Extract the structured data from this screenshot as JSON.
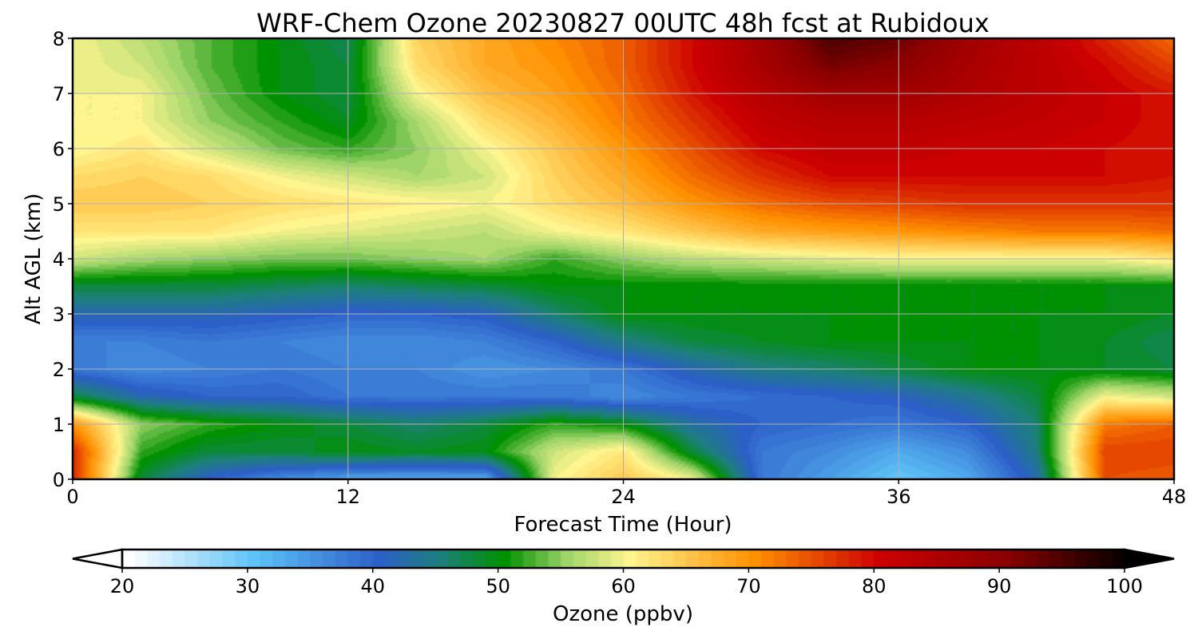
{
  "chart_data": {
    "type": "heatmap",
    "title": "WRF-Chem Ozone  20230827 00UTC 48h fcst at Rubidoux",
    "xlabel": "Forecast Time (Hour)",
    "ylabel": "Alt AGL (km)",
    "xlim": [
      0,
      48
    ],
    "ylim": [
      0,
      8
    ],
    "x_ticks": [
      "0",
      "12",
      "24",
      "36",
      "48"
    ],
    "y_ticks": [
      "0",
      "1",
      "2",
      "3",
      "4",
      "5",
      "6",
      "7",
      "8"
    ],
    "grid": true,
    "colorbar": {
      "label": "Ozone  (ppbv)",
      "range": [
        20,
        100
      ],
      "ticks": [
        "20",
        "30",
        "40",
        "50",
        "60",
        "70",
        "80",
        "90",
        "100"
      ],
      "extend": "both",
      "colors": [
        {
          "v": 20,
          "c": "#ffffff"
        },
        {
          "v": 30,
          "c": "#5ec3f8"
        },
        {
          "v": 40,
          "c": "#2c5fc8"
        },
        {
          "v": 45,
          "c": "#1d7f7a"
        },
        {
          "v": 50,
          "c": "#009100"
        },
        {
          "v": 55,
          "c": "#9fd46a"
        },
        {
          "v": 60,
          "c": "#fff58f"
        },
        {
          "v": 70,
          "c": "#ff9000"
        },
        {
          "v": 80,
          "c": "#cc0000"
        },
        {
          "v": 90,
          "c": "#8a0000"
        },
        {
          "v": 100,
          "c": "#000000"
        }
      ],
      "under_color": "#ffffff",
      "over_color": "#000000"
    },
    "x": [
      0,
      3,
      6,
      9,
      12,
      15,
      18,
      21,
      24,
      27,
      30,
      33,
      36,
      39,
      42,
      45,
      48
    ],
    "y": [
      0,
      0.5,
      1,
      1.5,
      2,
      2.5,
      3,
      3.5,
      4,
      4.5,
      5,
      5.5,
      6,
      6.5,
      7,
      7.5,
      8
    ],
    "z": [
      [
        78,
        48,
        40,
        36,
        33,
        33,
        33,
        60,
        65,
        60,
        38,
        34,
        30,
        33,
        42,
        75,
        74
      ],
      [
        78,
        52,
        48,
        48,
        50,
        49,
        50,
        58,
        62,
        48,
        38,
        36,
        33,
        36,
        45,
        76,
        76
      ],
      [
        70,
        55,
        52,
        50,
        48,
        46,
        48,
        52,
        50,
        43,
        40,
        39,
        38,
        40,
        46,
        72,
        74
      ],
      [
        48,
        42,
        40,
        40,
        38,
        38,
        38,
        38,
        36,
        38,
        39,
        40,
        41,
        44,
        48,
        60,
        58
      ],
      [
        38,
        36,
        37,
        38,
        37,
        37,
        35,
        36,
        38,
        42,
        45,
        46,
        48,
        50,
        50,
        49,
        48
      ],
      [
        37,
        37,
        38,
        37,
        36,
        36,
        37,
        40,
        45,
        48,
        49,
        50,
        50,
        50,
        50,
        49,
        47
      ],
      [
        42,
        42,
        42,
        41,
        40,
        40,
        41,
        46,
        50,
        50,
        50,
        50,
        50,
        50,
        50,
        50,
        49
      ],
      [
        48,
        48,
        48,
        47,
        46,
        47,
        48,
        50,
        50,
        50,
        50,
        50,
        50,
        50,
        50,
        50,
        50
      ],
      [
        58,
        56,
        55,
        54,
        54,
        55,
        56,
        52,
        55,
        57,
        58,
        59,
        60,
        60,
        60,
        60,
        62
      ],
      [
        62,
        62,
        62,
        60,
        59,
        58,
        57,
        60,
        62,
        65,
        68,
        69,
        70,
        71,
        72,
        72,
        73
      ],
      [
        65,
        65,
        64,
        63,
        62,
        61,
        60,
        63,
        66,
        70,
        73,
        75,
        76,
        77,
        77,
        77,
        77
      ],
      [
        63,
        64,
        63,
        60,
        58,
        56,
        58,
        64,
        68,
        73,
        77,
        80,
        80,
        80,
        80,
        80,
        79
      ],
      [
        60,
        62,
        58,
        54,
        52,
        55,
        60,
        65,
        70,
        75,
        80,
        82,
        82,
        81,
        81,
        80,
        79
      ],
      [
        60,
        60,
        55,
        52,
        49,
        56,
        63,
        67,
        72,
        77,
        82,
        84,
        84,
        83,
        82,
        81,
        79
      ],
      [
        60,
        60,
        54,
        50,
        48,
        60,
        66,
        69,
        73,
        79,
        84,
        87,
        87,
        85,
        83,
        81,
        79
      ],
      [
        60,
        58,
        53,
        50,
        48,
        63,
        68,
        70,
        74,
        80,
        86,
        92,
        90,
        86,
        83,
        80,
        76
      ],
      [
        60,
        57,
        53,
        50,
        47,
        64,
        68,
        71,
        74,
        80,
        87,
        95,
        93,
        87,
        83,
        78,
        73
      ]
    ]
  }
}
